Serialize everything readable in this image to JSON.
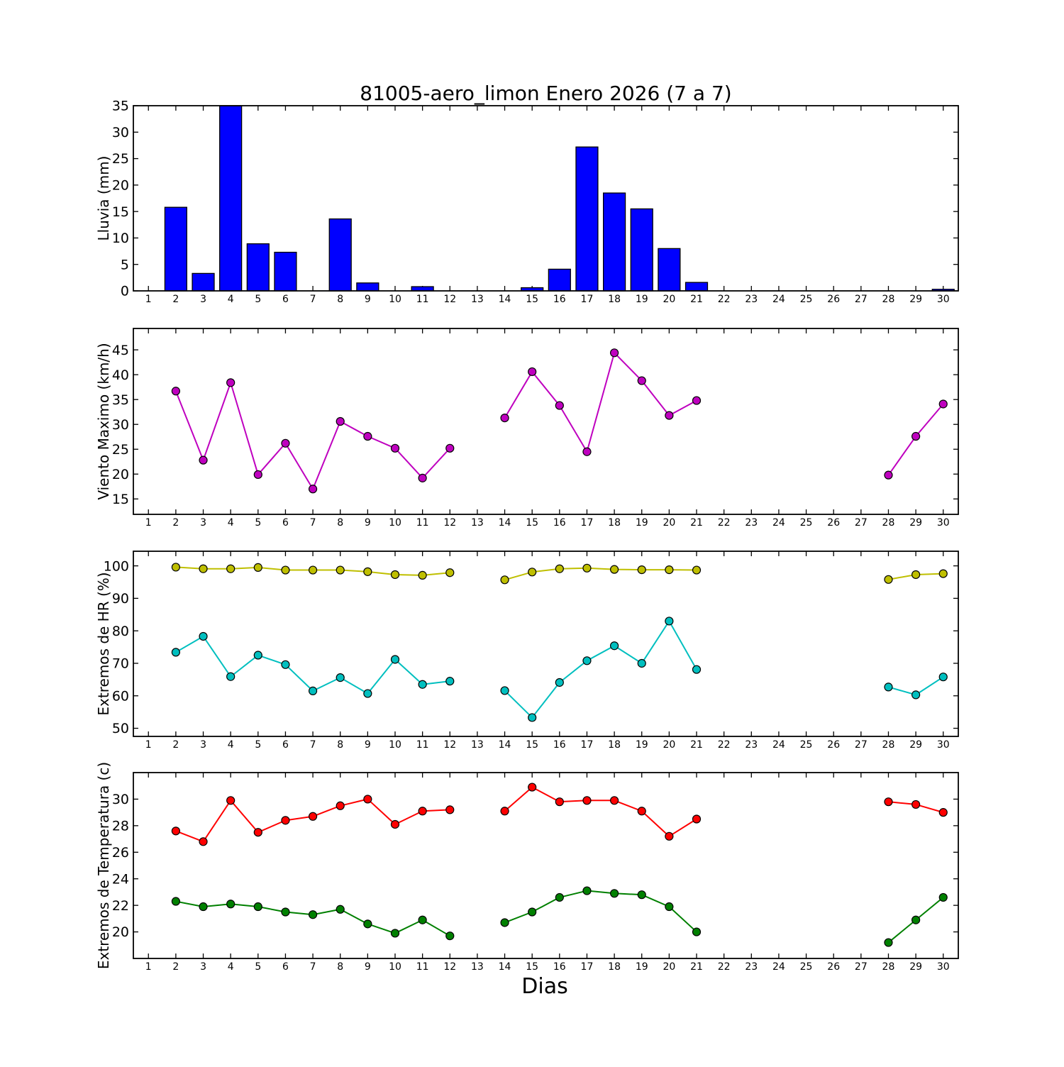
{
  "title": "81005-aero_limon Enero 2026  (7 a 7)",
  "xlabel": "Dias",
  "axes": {
    "days": [
      1,
      2,
      3,
      4,
      5,
      6,
      7,
      8,
      9,
      10,
      11,
      12,
      13,
      14,
      15,
      16,
      17,
      18,
      19,
      20,
      21,
      22,
      23,
      24,
      25,
      26,
      27,
      28,
      29,
      30
    ],
    "xlim": [
      0.45,
      30.55
    ]
  },
  "chart_data": [
    {
      "type": "bar",
      "name": "lluvia",
      "ylabel": "Lluvia (mm)",
      "color": "#0000ff",
      "ylim": [
        0,
        35
      ],
      "yticks": [
        0,
        5,
        10,
        15,
        20,
        25,
        30,
        35
      ],
      "x": [
        1,
        2,
        3,
        4,
        5,
        6,
        7,
        8,
        9,
        10,
        11,
        12,
        13,
        14,
        15,
        16,
        17,
        18,
        19,
        20,
        21,
        22,
        23,
        24,
        25,
        26,
        27,
        28,
        29,
        30
      ],
      "values": [
        0,
        15.8,
        3.3,
        35,
        8.9,
        7.3,
        0,
        13.6,
        1.5,
        0,
        0.8,
        0,
        0,
        0,
        0.6,
        4.1,
        27.2,
        18.5,
        15.5,
        8.0,
        1.6,
        0,
        0,
        0,
        0,
        0,
        0,
        0,
        0,
        0.3
      ]
    },
    {
      "type": "line",
      "name": "viento",
      "ylabel": "Viento Maximo (km/h)",
      "ylim": [
        11.9,
        49.3
      ],
      "yticks": [
        15,
        20,
        25,
        30,
        35,
        40,
        45
      ],
      "x": [
        1,
        2,
        3,
        4,
        5,
        6,
        7,
        8,
        9,
        10,
        11,
        12,
        13,
        14,
        15,
        16,
        17,
        18,
        19,
        20,
        21,
        22,
        23,
        24,
        25,
        26,
        27,
        28,
        29,
        30
      ],
      "series": [
        {
          "name": "viento-maximo",
          "color": "#bf00bf",
          "values": [
            null,
            36.7,
            22.8,
            38.4,
            19.9,
            26.2,
            17.0,
            30.6,
            27.6,
            25.2,
            19.2,
            25.2,
            null,
            31.3,
            40.6,
            33.8,
            24.5,
            44.4,
            38.8,
            31.8,
            34.8,
            null,
            null,
            null,
            null,
            null,
            null,
            19.8,
            27.6,
            34.1
          ]
        }
      ]
    },
    {
      "type": "line",
      "name": "extremos-hr",
      "ylabel": "Extremos de HR (%)",
      "ylim": [
        47.5,
        104.5
      ],
      "yticks": [
        50,
        60,
        70,
        80,
        90,
        100
      ],
      "x": [
        1,
        2,
        3,
        4,
        5,
        6,
        7,
        8,
        9,
        10,
        11,
        12,
        13,
        14,
        15,
        16,
        17,
        18,
        19,
        20,
        21,
        22,
        23,
        24,
        25,
        26,
        27,
        28,
        29,
        30
      ],
      "series": [
        {
          "name": "hr-max",
          "color": "#bfbf00",
          "values": [
            null,
            99.6,
            99.1,
            99.1,
            99.5,
            98.7,
            98.7,
            98.7,
            98.2,
            97.3,
            97.1,
            97.9,
            null,
            95.7,
            98.1,
            99.1,
            99.3,
            98.9,
            98.8,
            98.8,
            98.7,
            null,
            null,
            null,
            null,
            null,
            null,
            95.8,
            97.3,
            97.6
          ]
        },
        {
          "name": "hr-min",
          "color": "#00bfbf",
          "values": [
            null,
            73.4,
            78.3,
            65.9,
            72.5,
            69.6,
            61.5,
            65.6,
            60.7,
            71.2,
            63.5,
            64.5,
            null,
            61.6,
            53.3,
            64.1,
            70.8,
            75.4,
            70.0,
            83.0,
            68.1,
            null,
            null,
            null,
            null,
            null,
            null,
            62.7,
            60.3,
            65.8
          ]
        }
      ]
    },
    {
      "type": "line",
      "name": "extremos-temperatura",
      "ylabel": "Extremos de Temperatura (c)",
      "ylim": [
        18,
        32
      ],
      "yticks": [
        20,
        22,
        24,
        26,
        28,
        30
      ],
      "x": [
        1,
        2,
        3,
        4,
        5,
        6,
        7,
        8,
        9,
        10,
        11,
        12,
        13,
        14,
        15,
        16,
        17,
        18,
        19,
        20,
        21,
        22,
        23,
        24,
        25,
        26,
        27,
        28,
        29,
        30
      ],
      "series": [
        {
          "name": "temp-max",
          "color": "#ff0000",
          "values": [
            null,
            27.6,
            26.8,
            29.9,
            27.5,
            28.4,
            28.7,
            29.5,
            30.0,
            28.1,
            29.1,
            29.2,
            null,
            29.1,
            30.9,
            29.8,
            29.9,
            29.9,
            29.1,
            27.2,
            28.5,
            null,
            null,
            null,
            null,
            null,
            null,
            29.8,
            29.6,
            29.0
          ]
        },
        {
          "name": "temp-min",
          "color": "#008000",
          "values": [
            null,
            22.3,
            21.9,
            22.1,
            21.9,
            21.5,
            21.3,
            21.7,
            20.6,
            19.9,
            20.9,
            19.7,
            null,
            20.7,
            21.5,
            22.6,
            23.1,
            22.9,
            22.8,
            21.9,
            20.0,
            null,
            null,
            null,
            null,
            null,
            null,
            19.2,
            20.9,
            22.6
          ]
        }
      ]
    }
  ]
}
